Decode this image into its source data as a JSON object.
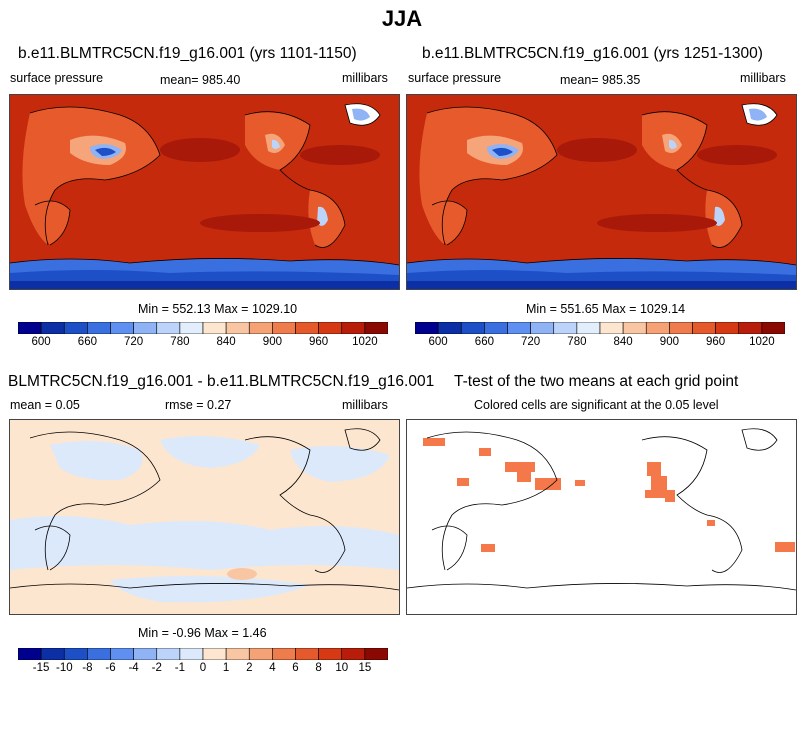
{
  "figure": {
    "title": "JJA"
  },
  "panels": [
    {
      "id": "case1",
      "title": "b.e11.BLMTRC5CN.f19_g16.001 (yrs 1101-1150)",
      "variable": "surface pressure",
      "mean_label": "mean= 985.40",
      "units": "millibars",
      "minmax_label": "Min = 552.13 Max = 1029.10"
    },
    {
      "id": "case2",
      "title": "b.e11.BLMTRC5CN.f19_g16.001 (yrs 1251-1300)",
      "variable": "surface pressure",
      "mean_label": "mean= 985.35",
      "units": "millibars",
      "minmax_label": "Min = 551.65 Max = 1029.14"
    },
    {
      "id": "diff",
      "title": "BLMTRC5CN.f19_g16.001 - b.e11.BLMTRC5CN.f19_g16.001",
      "mean_label": "mean =   0.05",
      "rmse_label": "rmse =   0.27",
      "units": "millibars",
      "minmax_label": "Min =  -0.96 Max =   1.46"
    },
    {
      "id": "ttest",
      "title": "T-test of the two means at each grid point",
      "subtitle": "Colored cells are significant at the 0.05 level"
    }
  ],
  "colorbars": {
    "abs": {
      "colors": [
        "#00008f",
        "#0c2fa5",
        "#1d4fc6",
        "#3a6fe0",
        "#5f8ff0",
        "#8fb3f5",
        "#bcd4f9",
        "#e2eefc",
        "#fde6cf",
        "#f9c6a3",
        "#f4a276",
        "#ee7c4c",
        "#e55a2c",
        "#d63a15",
        "#b71d0a",
        "#8a0a03"
      ],
      "ticks": [
        "600",
        "660",
        "720",
        "780",
        "840",
        "900",
        "960",
        "1020"
      ]
    },
    "diff": {
      "colors": [
        "#00008f",
        "#0c2fa5",
        "#1d4fc6",
        "#3a6fe0",
        "#5f8ff0",
        "#8fb3f5",
        "#bcd4f9",
        "#dce9fb",
        "#fde6cf",
        "#f9c6a3",
        "#f4a276",
        "#ee7c4c",
        "#e55a2c",
        "#d63a15",
        "#b71d0a",
        "#8a0a03"
      ],
      "ticks": [
        "-15",
        "-10",
        "-8",
        "-6",
        "-4",
        "-2",
        "-1",
        "0",
        "1",
        "2",
        "4",
        "6",
        "8",
        "10",
        "15"
      ]
    }
  },
  "chart_data": [
    {
      "type": "heatmap",
      "title": "b.e11.BLMTRC5CN.f19_g16.001 (yrs 1101-1150)",
      "variable": "surface pressure",
      "units": "millibars",
      "mean": 985.4,
      "min": 552.13,
      "max": 1029.1,
      "colorbar_levels": [
        600,
        660,
        720,
        780,
        840,
        900,
        960,
        1020
      ]
    },
    {
      "type": "heatmap",
      "title": "b.e11.BLMTRC5CN.f19_g16.001 (yrs 1251-1300)",
      "variable": "surface pressure",
      "units": "millibars",
      "mean": 985.35,
      "min": 551.65,
      "max": 1029.14,
      "colorbar_levels": [
        600,
        660,
        720,
        780,
        840,
        900,
        960,
        1020
      ]
    },
    {
      "type": "heatmap",
      "title": "BLMTRC5CN.f19_g16.001 - b.e11.BLMTRC5CN.f19_g16.001",
      "units": "millibars",
      "mean": 0.05,
      "rmse": 0.27,
      "min": -0.96,
      "max": 1.46,
      "colorbar_levels": [
        -15,
        -10,
        -8,
        -6,
        -4,
        -2,
        -1,
        0,
        1,
        2,
        4,
        6,
        8,
        10,
        15
      ]
    },
    {
      "type": "heatmap",
      "title": "T-test of the two means at each grid point",
      "significance_level": 0.05
    }
  ]
}
